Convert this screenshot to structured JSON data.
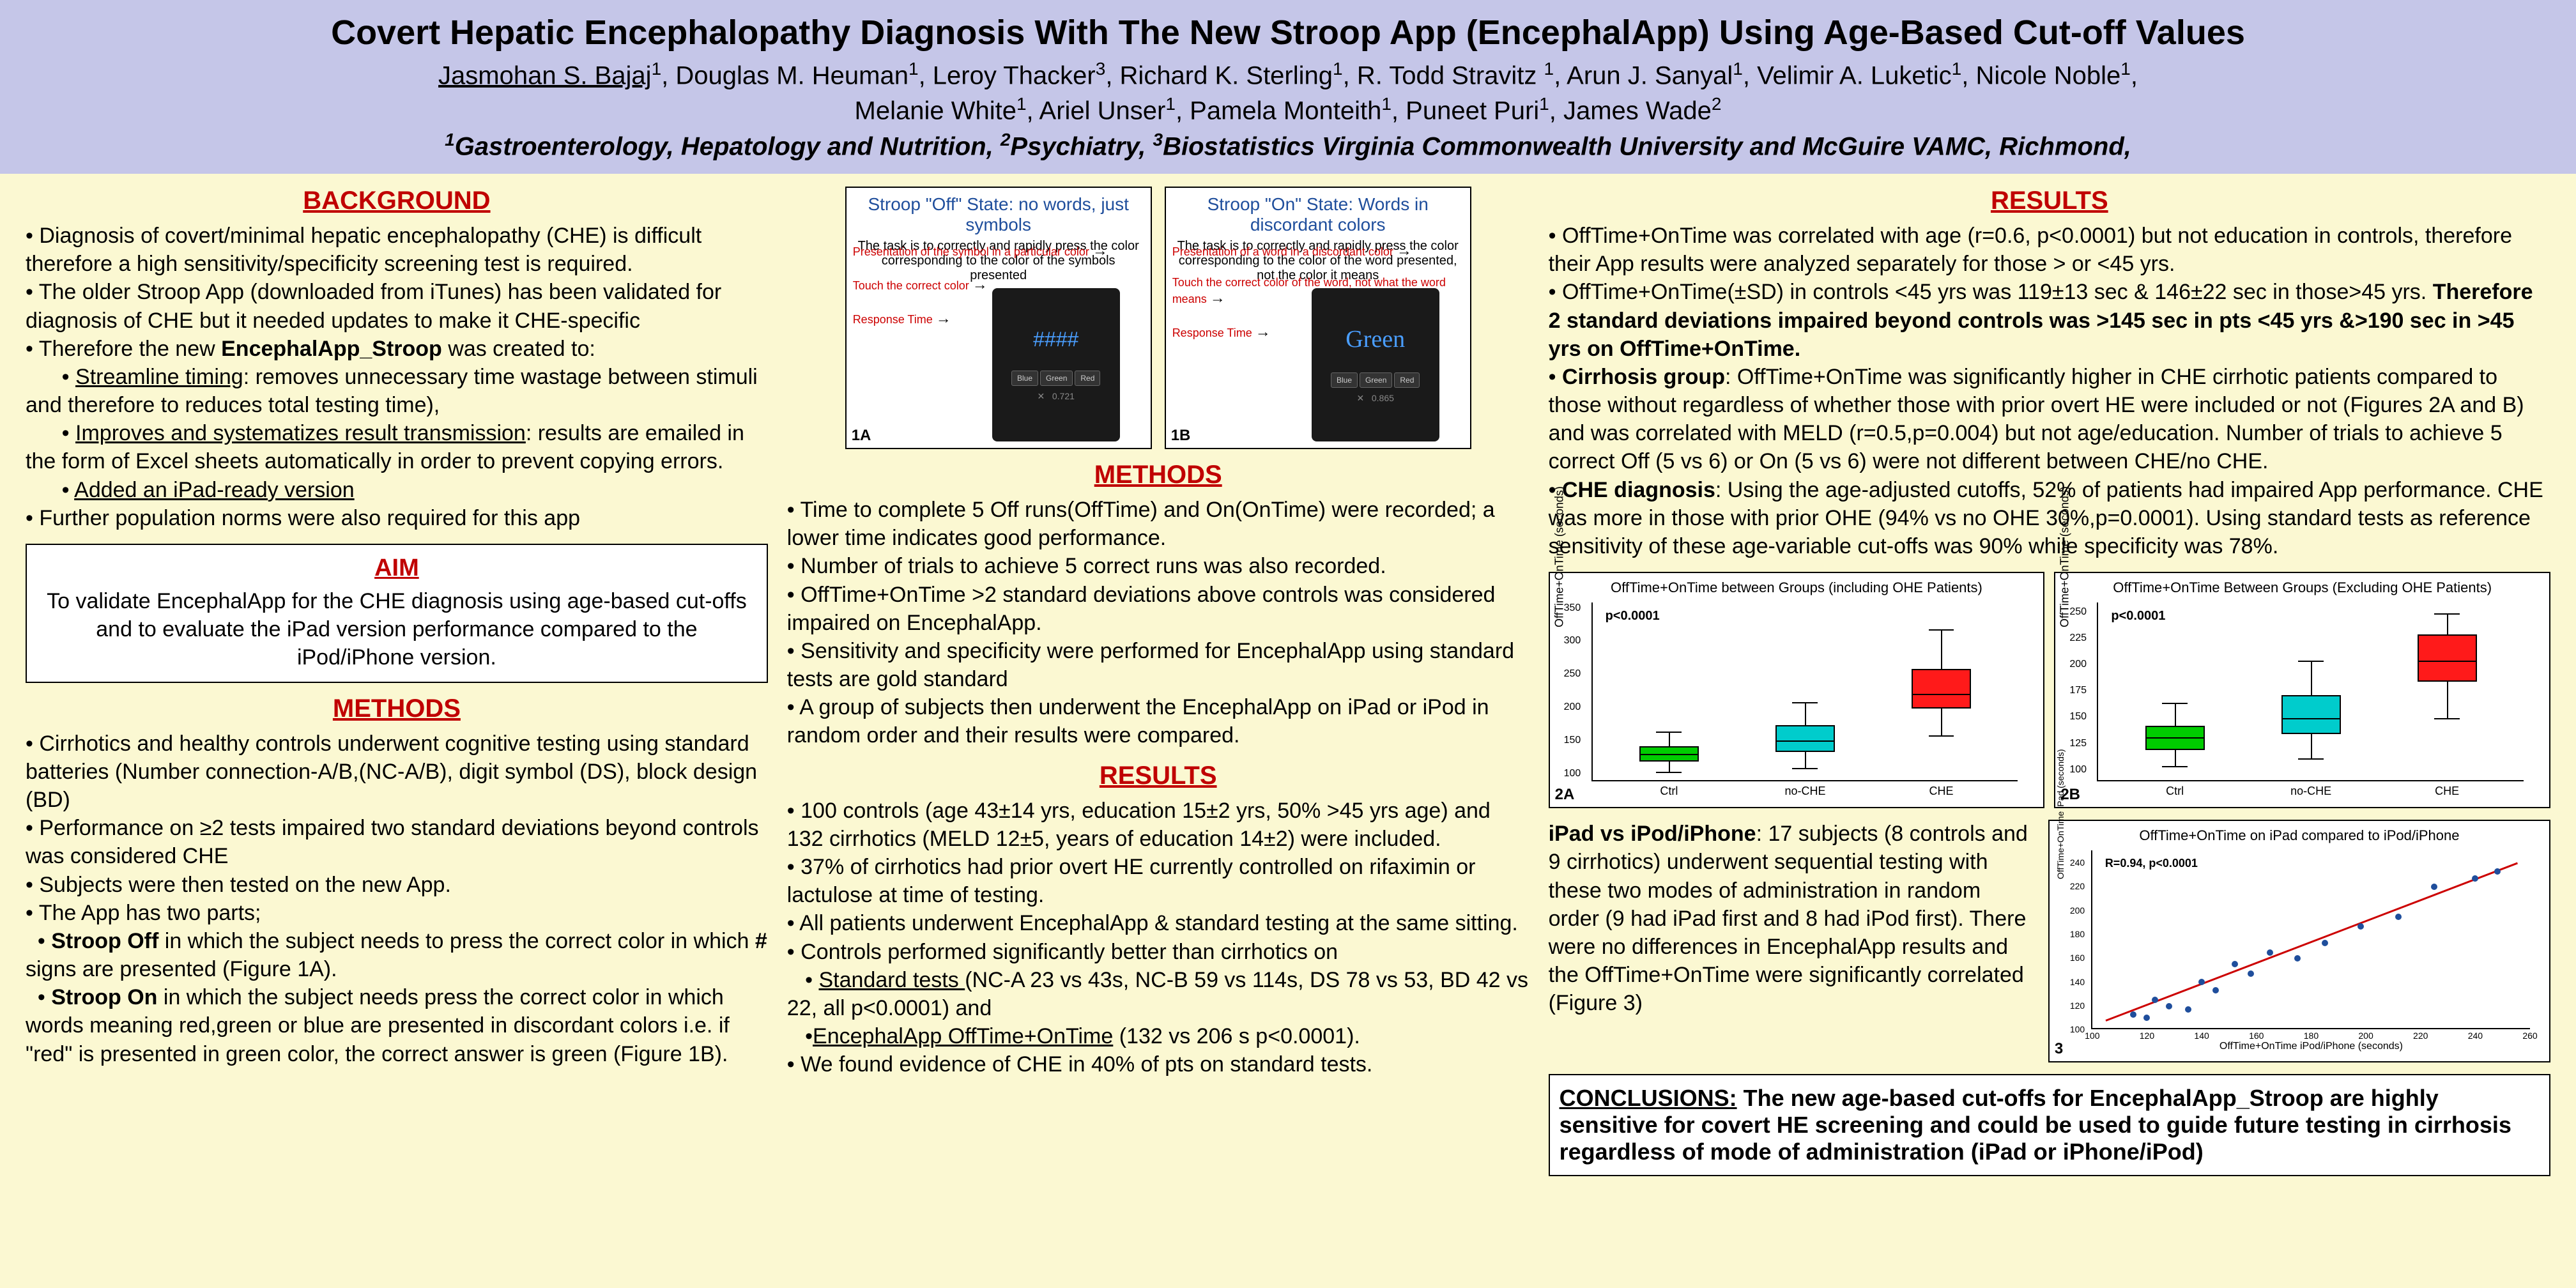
{
  "header": {
    "title": "Covert Hepatic Encephalopathy Diagnosis With The New Stroop App (EncephalApp) Using Age-Based Cut-off Values",
    "authors1_html": "<u class=\"au\">Jasmohan S. Bajaj</u><sup>1</sup>, Douglas M. Heuman<sup>1</sup>, Leroy Thacker<sup>3</sup>, Richard K. Sterling<sup>1</sup>, R. Todd Stravitz <sup>1</sup>, Arun J. Sanyal<sup>1</sup>, Velimir A. Luketic<sup>1</sup>, Nicole Noble<sup>1</sup>,",
    "authors2_html": "Melanie White<sup>1</sup>, Ariel Unser<sup>1</sup>, Pamela Monteith<sup>1</sup>, Puneet Puri<sup>1</sup>, James Wade<sup>2</sup>",
    "affil_html": "<sup>1</sup>Gastroenterology, Hepatology and Nutrition, <sup>2</sup>Psychiatry, <sup>3</sup>Biostatistics Virginia Commonwealth University and McGuire VAMC, Richmond,"
  },
  "col1": {
    "background_title": "BACKGROUND",
    "background_html": "• Diagnosis of covert/minimal hepatic encephalopathy (CHE) is difficult therefore  a high sensitivity/specificity screening test is required.<br>• The older Stroop App (downloaded from iTunes) has been validated for diagnosis of CHE but it needed updates to make it CHE-specific<br>• Therefore the new <b>EncephalApp_Stroop</b> was created to:<br>&nbsp;&nbsp;&nbsp;&nbsp;&nbsp;&nbsp;• <u>Streamline timing</u>: removes unnecessary time wastage between stimuli and therefore to reduces total testing time),<br>&nbsp;&nbsp;&nbsp;&nbsp;&nbsp;&nbsp;• <u>Improves and systematizes result transmission</u>: results are emailed in the form of Excel sheets automatically in order to prevent copying errors.<br>&nbsp;&nbsp;&nbsp;&nbsp;&nbsp;&nbsp;• <u>Added an iPad-ready version</u><br>• Further population norms were also required for this app",
    "aim_title": "AIM",
    "aim_text": "To validate EncephalApp for the CHE diagnosis using age-based cut-offs and to evaluate the iPad version performance compared to the iPod/iPhone version.",
    "methods_title": "METHODS",
    "methods_html": "• Cirrhotics and healthy controls underwent cognitive testing using standard batteries (Number connection-A/B,(NC-A/B), digit symbol (DS), block design (BD)<br>• Performance on ≥2 tests impaired two standard deviations beyond controls was considered CHE<br>• Subjects were then tested on the new App.<br>• The App has two parts;<br>&nbsp;&nbsp;• <b>Stroop Off</b> in which the subject needs to press the correct color in which <b>#</b> signs are presented (Figure 1A).<br>&nbsp;&nbsp;• <b>Stroop On</b> in which the subject needs press the correct color in which words meaning red,green or blue are presented in discordant colors i.e. if \"red\" is presented in green color, the correct answer is green (Figure 1B)."
  },
  "col2": {
    "screen1": {
      "title": "Stroop \"Off\" State: no words, just symbols",
      "desc": "The task is to correctly and rapidly press the color corresponding to the color of the symbols presented",
      "label1": "Presentation of the symbol in a particular color",
      "label2": "Touch the correct color",
      "label3": "Response Time",
      "display": "####",
      "time": "0.721",
      "num": "1A"
    },
    "screen2": {
      "title": "Stroop \"On\" State: Words in discordant colors",
      "desc": "The task is to correctly and rapidly press the color corresponding to the color of the word presented, not the color it means",
      "label1": "Presentation of a word in a discordant color",
      "label2": "Touch the correct color of the word, not what the word means",
      "label3": "Response Time",
      "display": "Green",
      "time": "0.865",
      "num": "1B"
    },
    "btns": [
      "Blue",
      "Green",
      "Red"
    ],
    "methods_title": "METHODS",
    "methods_html": "•  Time to complete 5 Off runs(OffTime) and On(OnTime) were recorded; a lower time indicates good performance.<br>• Number of trials to achieve 5 correct runs was also recorded.<br>• OffTime+OnTime >2  standard deviations above controls was considered impaired on EncephalApp.<br>• Sensitivity and specificity were performed for EncephalApp using standard tests are gold standard<br>• A group of subjects then underwent the EncephalApp on iPad or iPod in random order and their results were compared.",
    "results_title": "RESULTS",
    "results_html": "• 100 controls (age 43±14 yrs, education 15±2 yrs, 50% >45 yrs age) and  132 cirrhotics (MELD 12±5, years of education 14±2) were included.<br>• 37% of cirrhotics had prior overt HE currently controlled on rifaximin or lactulose at time of testing.<br>• All patients underwent EncephalApp & standard testing at the same sitting.<br>• Controls performed significantly better than cirrhotics on<br>&nbsp;&nbsp;&nbsp;• <u>Standard tests </u>(NC-A 23 vs 43s, NC-B 59 vs 114s, DS 78 vs 53, BD 42 vs 22, all p<0.0001)  and<br>&nbsp;&nbsp;&nbsp;•<u>EncephalApp OffTime+OnTime</u> (132 vs 206 s p<0.0001).<br>• We found evidence of CHE in 40% of pts on standard tests."
  },
  "col3": {
    "results_title": "RESULTS",
    "results_html": "• OffTime+OnTime was correlated with age (r=0.6, p<0.0001) but not education in controls, therefore their App results were analyzed separately for those > or <45 yrs.<br>• OffTime+OnTime(±SD) in controls <45 yrs was 119±13 sec & 146±22 sec in those>45 yrs. <b>Therefore 2 standard deviations impaired beyond controls was >145 sec in pts <45 yrs &>190 sec in >45 yrs on OffTime+OnTime.</b><br>• <b>Cirrhosis group</b>: OffTime+OnTime was significantly higher in CHE cirrhotic patients compared to those without regardless of whether those with prior overt HE were included or not (Figures 2A and B) and was correlated with MELD (r=0.5,p=0.004) but not age/education. Number of trials to achieve 5 correct Off (5 vs 6) or On (5 vs 6) were not different between CHE/no CHE.<br>• <b>CHE diagnosis</b>: Using the age-adjusted cutoffs, 52% of patients had impaired App performance. CHE was more in those with prior OHE (94% vs no OHE 30%,p=0.0001). Using standard tests as reference sensitivity of these age-variable cut-offs was 90% while specificity was 78%.",
    "ipad_html": "<b>iPad vs iPod/iPhone</b>: 17 subjects (8 controls and 9 cirrhotics) underwent sequential testing with these two modes of administration in random order (9 had iPad first and 8 had iPod first). There were no differences in EncephalApp results and the OffTime+OnTime were significantly correlated (Figure 3)",
    "conclusions_html": "<span class=\"concl-title\">CONCLUSIONS:</span> <b>The new age-based cut-offs for EncephalApp_Stroop are highly sensitive for covert HE screening and could be used to guide future testing in cirrhosis regardless of mode of administration (iPad or iPhone/iPod)</b>"
  },
  "fig2a": {
    "title": "OffTime+OnTime between Groups (including OHE Patients)",
    "ylabel": "OffTime+OnTime (seconds)",
    "pval": "p<0.0001",
    "num": "2A",
    "yticks": [
      100,
      150,
      200,
      250,
      300,
      350
    ],
    "ymin": 90,
    "ymax": 360,
    "groups": [
      {
        "name": "Ctrl",
        "x": 18,
        "q1": 120,
        "med": 132,
        "q3": 143,
        "lo": 105,
        "hi": 165,
        "color": "#00cc00"
      },
      {
        "name": "no-CHE",
        "x": 50,
        "q1": 135,
        "med": 152,
        "q3": 175,
        "lo": 110,
        "hi": 210,
        "color": "#00cccc"
      },
      {
        "name": "CHE",
        "x": 82,
        "q1": 200,
        "med": 222,
        "q3": 260,
        "lo": 160,
        "hi": 320,
        "color": "#ff1a1a"
      }
    ]
  },
  "fig2b": {
    "title": "OffTime+OnTime Between Groups (Excluding OHE Patients)",
    "ylabel": "OffTime+OnTime (seconds)",
    "pval": "p<0.0001",
    "num": "2B",
    "yticks": [
      100,
      125,
      150,
      175,
      200,
      225,
      250
    ],
    "ymin": 90,
    "ymax": 260,
    "groups": [
      {
        "name": "Ctrl",
        "x": 18,
        "q1": 120,
        "med": 132,
        "q3": 143,
        "lo": 105,
        "hi": 165,
        "color": "#00cc00"
      },
      {
        "name": "no-CHE",
        "x": 50,
        "q1": 135,
        "med": 150,
        "q3": 172,
        "lo": 112,
        "hi": 205,
        "color": "#00cccc"
      },
      {
        "name": "CHE",
        "x": 82,
        "q1": 185,
        "med": 205,
        "q3": 230,
        "lo": 150,
        "hi": 250,
        "color": "#ff1a1a"
      }
    ]
  },
  "fig3": {
    "title": "OffTime+OnTime on iPad compared to iPod/iPhone",
    "xlabel": "OffTime+OnTime iPod/iPhone (seconds)",
    "ylabel": "OffTime+OnTime iPad (seconds)",
    "rval": "R=0.94, p<0.0001",
    "num": "3",
    "xmin": 100,
    "xmax": 260,
    "ymin": 100,
    "ymax": 250,
    "xticks": [
      100,
      120,
      140,
      160,
      180,
      200,
      220,
      240,
      260
    ],
    "yticks": [
      100,
      120,
      140,
      160,
      180,
      200,
      220,
      240
    ],
    "points": [
      [
        115,
        118
      ],
      [
        120,
        115
      ],
      [
        123,
        130
      ],
      [
        128,
        125
      ],
      [
        135,
        122
      ],
      [
        140,
        145
      ],
      [
        145,
        138
      ],
      [
        152,
        160
      ],
      [
        158,
        152
      ],
      [
        165,
        170
      ],
      [
        175,
        165
      ],
      [
        185,
        178
      ],
      [
        198,
        192
      ],
      [
        212,
        200
      ],
      [
        225,
        225
      ],
      [
        240,
        232
      ],
      [
        248,
        238
      ]
    ],
    "line": {
      "x1": 105,
      "y1": 108,
      "x2": 255,
      "y2": 240
    }
  }
}
